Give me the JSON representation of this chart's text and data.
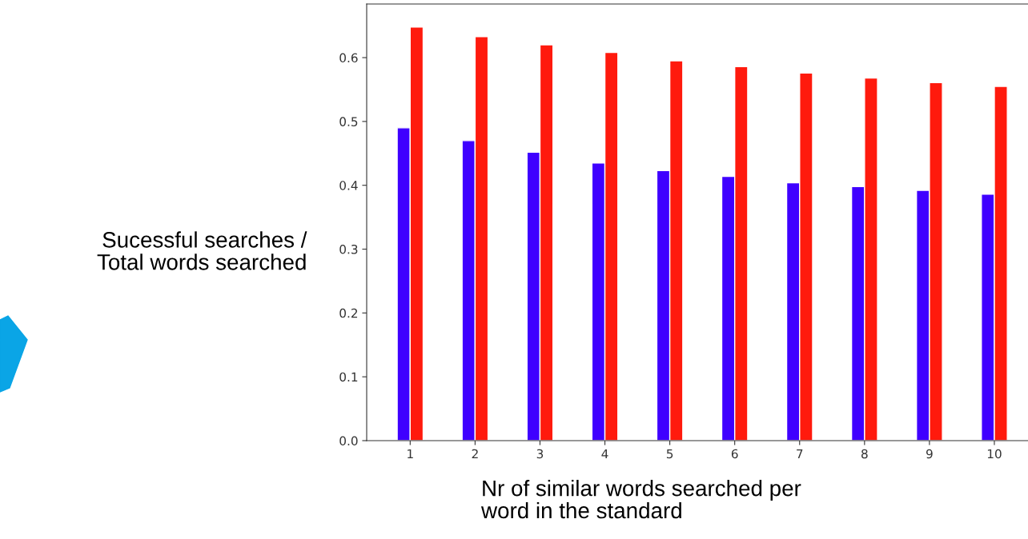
{
  "chart_data": {
    "type": "bar",
    "xlabel": "Nr of similar words searched per\nword in the standard",
    "ylabel": "Sucessful searches /\nTotal words searched",
    "categories": [
      "1",
      "2",
      "3",
      "4",
      "5",
      "6",
      "7",
      "8",
      "9",
      "10"
    ],
    "series": [
      {
        "color": "#3f00ff",
        "values": [
          0.49,
          0.47,
          0.452,
          0.435,
          0.423,
          0.414,
          0.404,
          0.398,
          0.392,
          0.386
        ]
      },
      {
        "color": "#ff1a0d",
        "values": [
          0.648,
          0.633,
          0.62,
          0.608,
          0.595,
          0.586,
          0.576,
          0.568,
          0.561,
          0.555
        ]
      }
    ],
    "ylim": [
      0,
      0.684
    ],
    "yticks": [
      {
        "value": 0,
        "label": "0.0"
      },
      0.1,
      0.2,
      0.3,
      0.4,
      0.5,
      0.6
    ],
    "grid": false,
    "legend": false
  }
}
